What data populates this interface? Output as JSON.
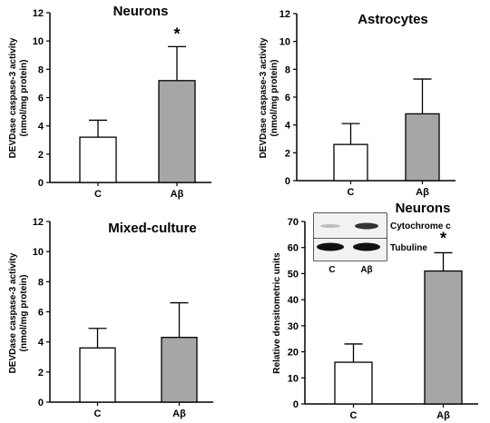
{
  "chart_data": [
    {
      "type": "bar",
      "title": "Neurons",
      "ylabel_line1": "DEVDase caspase-3 activity",
      "ylabel_line2": "(nmol/mg protein)",
      "categories": [
        "C",
        "Aβ"
      ],
      "values": [
        3.2,
        7.2
      ],
      "errors": [
        1.2,
        2.4
      ],
      "bar_colors": [
        "#ffffff",
        "#a6a6a6"
      ],
      "significance": [
        "",
        "*"
      ],
      "ylim": [
        0,
        12
      ],
      "yticks": [
        0,
        2,
        4,
        6,
        8,
        10,
        12
      ]
    },
    {
      "type": "bar",
      "title": "Astrocytes",
      "ylabel_line1": "DEVDase caspase-3 activity",
      "ylabel_line2": "(nmol/mg protein)",
      "categories": [
        "C",
        "Aβ"
      ],
      "values": [
        2.6,
        4.8
      ],
      "errors": [
        1.5,
        2.5
      ],
      "bar_colors": [
        "#ffffff",
        "#a6a6a6"
      ],
      "significance": [
        "",
        ""
      ],
      "ylim": [
        0,
        12
      ],
      "yticks": [
        0,
        2,
        4,
        6,
        8,
        10,
        12
      ]
    },
    {
      "type": "bar",
      "title": "Mixed-culture",
      "ylabel_line1": "DEVDase caspase-3 activity",
      "ylabel_line2": "(nmol/mg protein)",
      "categories": [
        "C",
        "Aβ"
      ],
      "values": [
        3.6,
        4.3
      ],
      "errors": [
        1.3,
        2.3
      ],
      "bar_colors": [
        "#ffffff",
        "#a6a6a6"
      ],
      "significance": [
        "",
        ""
      ],
      "ylim": [
        0,
        12
      ],
      "yticks": [
        0,
        2,
        4,
        6,
        8,
        10,
        12
      ]
    },
    {
      "type": "bar",
      "title": "Neurons",
      "ylabel_line1": "Relative densitometric units",
      "ylabel_line2": "",
      "categories": [
        "C",
        "Aβ"
      ],
      "values": [
        16,
        51
      ],
      "errors": [
        7,
        7
      ],
      "bar_colors": [
        "#ffffff",
        "#a6a6a6"
      ],
      "significance": [
        "",
        "*"
      ],
      "ylim": [
        0,
        70
      ],
      "yticks": [
        0,
        10,
        20,
        30,
        40,
        50,
        60,
        70
      ]
    }
  ],
  "blot": {
    "rows": [
      "Cytochrome c",
      "Tubuline"
    ],
    "lanes": [
      "C",
      "Aβ"
    ]
  }
}
